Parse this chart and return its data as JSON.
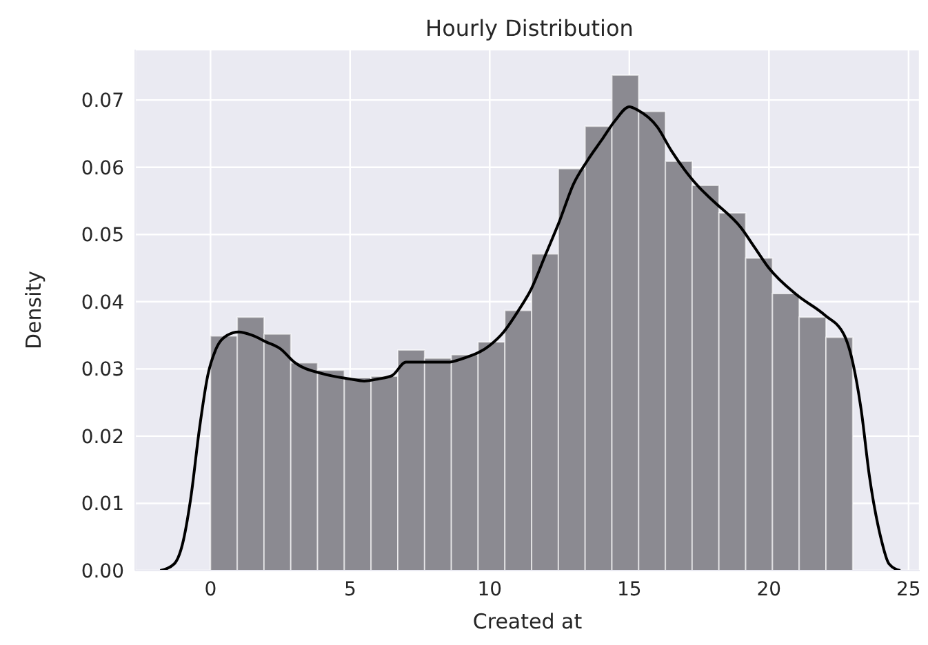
{
  "chart_data": {
    "type": "histogram",
    "title": "Hourly Distribution",
    "xlabel": "Created at",
    "ylabel": "Density",
    "xlim": [
      -2.7,
      25.4
    ],
    "ylim": [
      0,
      0.0775
    ],
    "xticks": [
      0,
      5,
      10,
      15,
      20,
      25
    ],
    "yticks": [
      {
        "value": 0,
        "label": "0.00"
      },
      {
        "value": 0.01,
        "label": "0.01"
      },
      {
        "value": 0.02,
        "label": "0.02"
      },
      {
        "value": 0.03,
        "label": "0.03"
      },
      {
        "value": 0.04,
        "label": "0.04"
      },
      {
        "value": 0.05,
        "label": "0.05"
      },
      {
        "value": 0.06,
        "label": "0.06"
      },
      {
        "value": 0.07,
        "label": "0.07"
      }
    ],
    "grid": true,
    "series": [
      {
        "color": "#8b8a91",
        "bins": [
          0,
          0.9583,
          1.9167,
          2.875,
          3.8333,
          4.7917,
          5.75,
          6.7083,
          7.6667,
          8.625,
          9.5833,
          10.5417,
          11.5,
          12.4583,
          13.4167,
          14.375,
          15.3333,
          16.2917,
          17.25,
          18.2083,
          19.1667,
          20.125,
          21.0833,
          22.0417,
          23
        ],
        "values": [
          0.0349,
          0.0377,
          0.0352,
          0.0309,
          0.0298,
          0.0287,
          0.0289,
          0.0328,
          0.0316,
          0.0321,
          0.034,
          0.0387,
          0.0471,
          0.0598,
          0.0661,
          0.0737,
          0.0683,
          0.0609,
          0.0573,
          0.0532,
          0.0465,
          0.0412,
          0.0377,
          0.0347
        ]
      },
      {
        "type": "line",
        "color": "#000000",
        "marker": "none",
        "x": [
          -1.8,
          -1.3,
          -1,
          -0.7,
          -0.4,
          -0.1,
          0.2,
          0.6,
          1,
          1.5,
          2,
          2.5,
          3,
          4,
          5,
          5.5,
          6,
          6.5,
          7,
          7.5,
          8,
          8.5,
          9,
          10,
          10.5,
          11,
          11.5,
          12,
          12.5,
          13,
          13.5,
          14,
          14.5,
          15,
          15.3,
          16,
          16.5,
          17,
          17.5,
          18,
          19,
          19.5,
          20,
          21,
          22,
          22.7,
          23,
          23.3,
          23.6,
          24,
          24.3,
          24.7
        ],
        "values": [
          0,
          0.001,
          0.004,
          0.011,
          0.021,
          0.029,
          0.033,
          0.035,
          0.0355,
          0.035,
          0.034,
          0.033,
          0.031,
          0.0293,
          0.0285,
          0.0282,
          0.0285,
          0.029,
          0.031,
          0.031,
          0.031,
          0.031,
          0.0315,
          0.0335,
          0.0355,
          0.0385,
          0.042,
          0.047,
          0.052,
          0.0575,
          0.061,
          0.064,
          0.067,
          0.069,
          0.0685,
          0.066,
          0.0625,
          0.0595,
          0.057,
          0.055,
          0.051,
          0.048,
          0.045,
          0.041,
          0.038,
          0.035,
          0.031,
          0.024,
          0.014,
          0.005,
          0.001,
          0
        ]
      }
    ]
  }
}
